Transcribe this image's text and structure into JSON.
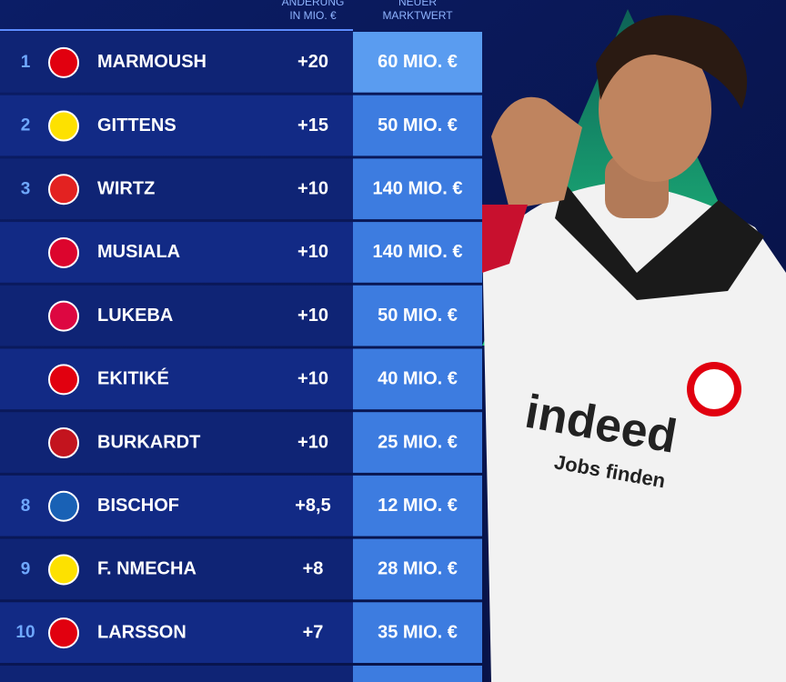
{
  "table": {
    "header": {
      "change": [
        "ÄNDERUNG",
        "IN MIO. €"
      ],
      "value": [
        "NEUER",
        "MARKTWERT"
      ]
    },
    "rows": [
      {
        "rank": "1",
        "player": "MARMOUSH",
        "change": "+20",
        "value": "60 MIO. €"
      },
      {
        "rank": "2",
        "player": "GITTENS",
        "change": "+15",
        "value": "50 MIO. €"
      },
      {
        "rank": "3",
        "player": "WIRTZ",
        "change": "+10",
        "value": "140 MIO. €"
      },
      {
        "player": "MUSIALA",
        "change": "+10",
        "value": "140 MIO. €"
      },
      {
        "player": "LUKEBA",
        "change": "+10",
        "value": "50 MIO. €"
      },
      {
        "player": "EKITIKÉ",
        "change": "+10",
        "value": "40 MIO. €"
      },
      {
        "player": "BURKARDT",
        "change": "+10",
        "value": "25 MIO. €"
      },
      {
        "rank": "8",
        "player": "BISCHOF",
        "change": "+8,5",
        "value": "12 MIO. €"
      },
      {
        "rank": "9",
        "player": "F. NMECHA",
        "change": "+8",
        "value": "28 MIO. €"
      },
      {
        "rank": "10",
        "player": "LARSSON",
        "change": "+7",
        "value": "35 MIO. €"
      }
    ]
  }
}
